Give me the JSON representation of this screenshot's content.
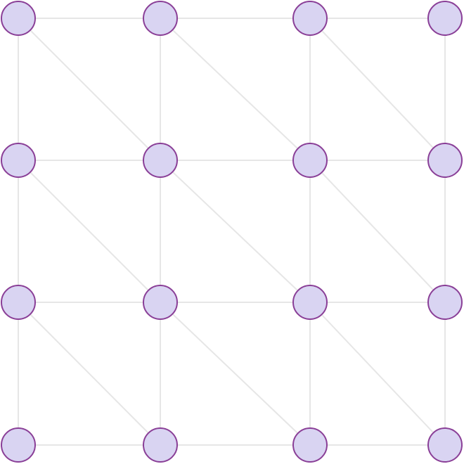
{
  "diagram": {
    "type": "grid-graph",
    "rows": 4,
    "cols": 4,
    "colors": {
      "background": "#ffffff",
      "edge": "#e6e6e6",
      "node_fill": "#d9d4f2",
      "node_stroke": "#8a3f97"
    },
    "nodes": [
      {
        "id": "n-0-0",
        "row": 0,
        "col": 0
      },
      {
        "id": "n-0-1",
        "row": 0,
        "col": 1
      },
      {
        "id": "n-0-2",
        "row": 0,
        "col": 2
      },
      {
        "id": "n-0-3",
        "row": 0,
        "col": 3
      },
      {
        "id": "n-1-0",
        "row": 1,
        "col": 0
      },
      {
        "id": "n-1-1",
        "row": 1,
        "col": 1
      },
      {
        "id": "n-1-2",
        "row": 1,
        "col": 2
      },
      {
        "id": "n-1-3",
        "row": 1,
        "col": 3
      },
      {
        "id": "n-2-0",
        "row": 2,
        "col": 0
      },
      {
        "id": "n-2-1",
        "row": 2,
        "col": 1
      },
      {
        "id": "n-2-2",
        "row": 2,
        "col": 2
      },
      {
        "id": "n-2-3",
        "row": 2,
        "col": 3
      },
      {
        "id": "n-3-0",
        "row": 3,
        "col": 0
      },
      {
        "id": "n-3-1",
        "row": 3,
        "col": 1
      },
      {
        "id": "n-3-2",
        "row": 3,
        "col": 2
      },
      {
        "id": "n-3-3",
        "row": 3,
        "col": 3
      }
    ],
    "edges": [
      [
        "n-0-0",
        "n-0-1"
      ],
      [
        "n-0-1",
        "n-0-2"
      ],
      [
        "n-0-2",
        "n-0-3"
      ],
      [
        "n-1-0",
        "n-1-1"
      ],
      [
        "n-1-1",
        "n-1-2"
      ],
      [
        "n-1-2",
        "n-1-3"
      ],
      [
        "n-2-0",
        "n-2-1"
      ],
      [
        "n-2-1",
        "n-2-2"
      ],
      [
        "n-2-2",
        "n-2-3"
      ],
      [
        "n-3-0",
        "n-3-1"
      ],
      [
        "n-3-1",
        "n-3-2"
      ],
      [
        "n-3-2",
        "n-3-3"
      ],
      [
        "n-0-0",
        "n-1-0"
      ],
      [
        "n-1-0",
        "n-2-0"
      ],
      [
        "n-2-0",
        "n-3-0"
      ],
      [
        "n-0-1",
        "n-1-1"
      ],
      [
        "n-1-1",
        "n-2-1"
      ],
      [
        "n-2-1",
        "n-3-1"
      ],
      [
        "n-0-2",
        "n-1-2"
      ],
      [
        "n-1-2",
        "n-2-2"
      ],
      [
        "n-2-2",
        "n-3-2"
      ],
      [
        "n-0-3",
        "n-1-3"
      ],
      [
        "n-1-3",
        "n-2-3"
      ],
      [
        "n-2-3",
        "n-3-3"
      ],
      [
        "n-0-0",
        "n-1-1"
      ],
      [
        "n-0-1",
        "n-1-2"
      ],
      [
        "n-0-2",
        "n-1-3"
      ],
      [
        "n-1-0",
        "n-2-1"
      ],
      [
        "n-1-1",
        "n-2-2"
      ],
      [
        "n-1-2",
        "n-2-3"
      ],
      [
        "n-2-0",
        "n-3-1"
      ],
      [
        "n-2-1",
        "n-3-2"
      ],
      [
        "n-2-2",
        "n-3-3"
      ]
    ]
  }
}
